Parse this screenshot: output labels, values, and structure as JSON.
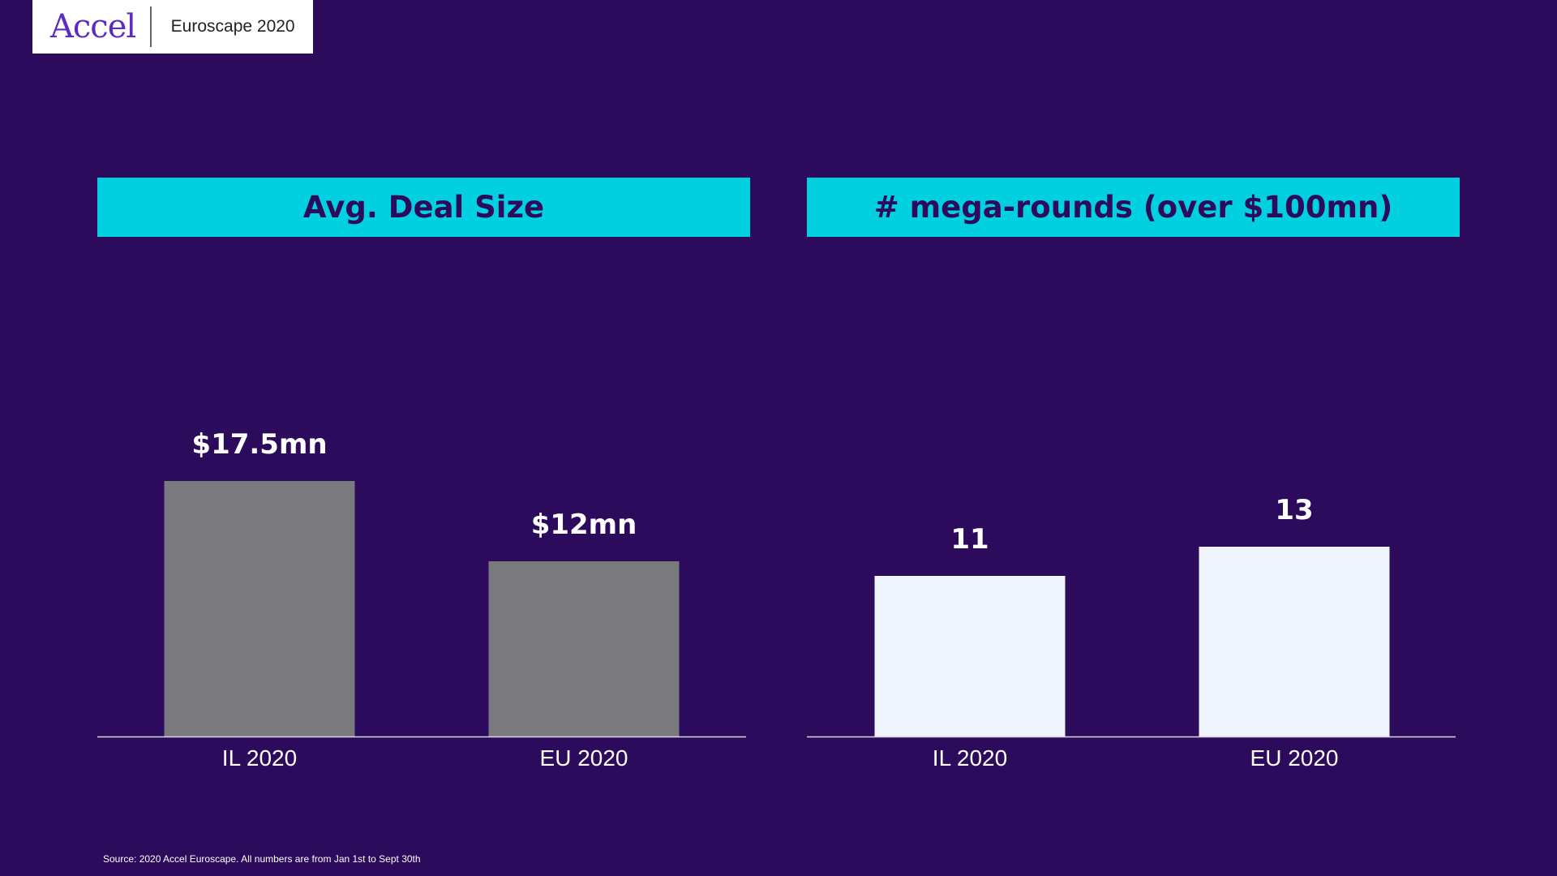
{
  "header": {
    "logo_text": "Accel",
    "title": "Euroscape 2020"
  },
  "colors": {
    "background": "#2c0a5c",
    "header_band": "#00d0e0",
    "bar_left": "#7a797e",
    "bar_right": "#eff3fb",
    "text": "#ffffff"
  },
  "chart_data": [
    {
      "type": "bar",
      "title": "Avg. Deal Size",
      "categories": [
        "IL 2020",
        "EU 2020"
      ],
      "values": [
        17.5,
        12
      ],
      "data_labels": [
        "$17.5mn",
        "$12mn"
      ],
      "unit": "$mn",
      "ylim": [
        0,
        30
      ],
      "grid": false,
      "legend": "none",
      "bar_color": "#7a797e"
    },
    {
      "type": "bar",
      "title": "# mega-rounds (over $100mn)",
      "categories": [
        "IL 2020",
        "EU 2020"
      ],
      "values": [
        11,
        13
      ],
      "data_labels": [
        "11",
        "13"
      ],
      "ylim": [
        0,
        30
      ],
      "grid": false,
      "legend": "none",
      "bar_color": "#eff3fb"
    }
  ],
  "footer": {
    "source": "Source: 2020 Accel Euroscape. All numbers are from Jan 1st to Sept 30th"
  }
}
